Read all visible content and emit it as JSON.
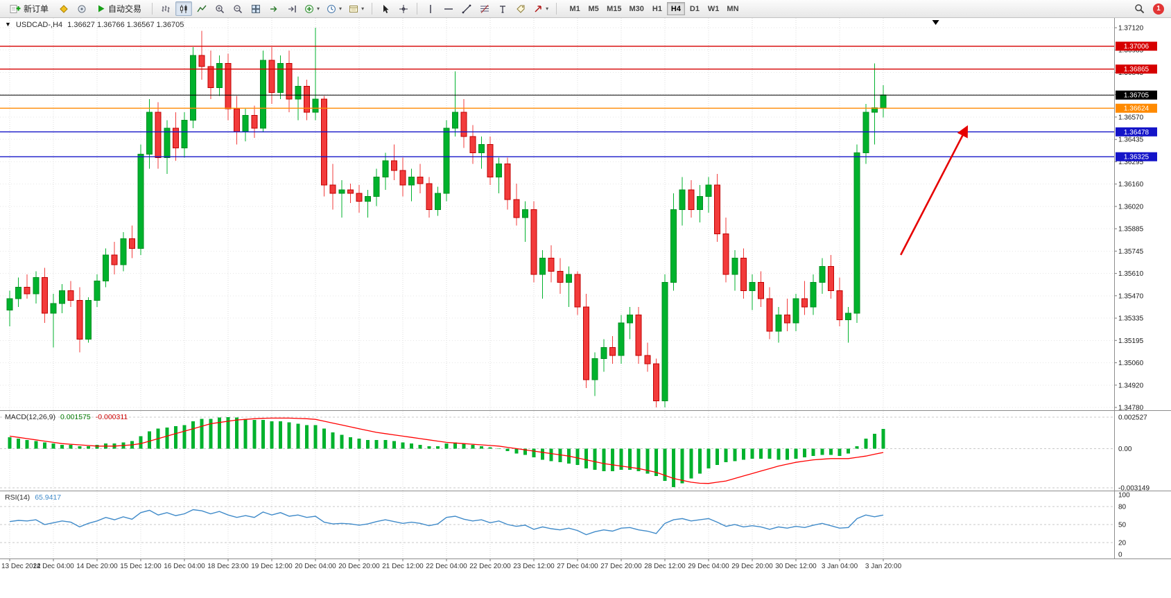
{
  "icons": {
    "chart_menu": "▼",
    "caret": "▾"
  },
  "toolbar": {
    "new_order_label": "新订单",
    "autotrading_label": "自动交易",
    "timeframes": [
      "M1",
      "M5",
      "M15",
      "M30",
      "H1",
      "H4",
      "D1",
      "W1",
      "MN"
    ],
    "active_timeframe": "H4",
    "notification_count": "1"
  },
  "chart": {
    "title": "USDCAD-,H4",
    "ohlc": "1.36627 1.36766 1.36567 1.36705"
  },
  "colors": {
    "up": "#00b22d",
    "up_border": "#008f20",
    "down": "#f23b3b",
    "down_border": "#c00000",
    "grid": "#dcdcdc",
    "hgrid": "#e6e6e6",
    "panel_border": "#8c8c8c",
    "macd_hist": "#00b22d",
    "macd_signal": "#ff0000",
    "rsi_line": "#3f8ac9",
    "level_dash": "#c8c8c8",
    "arrow": "#e60000",
    "current_price": "#000000"
  },
  "chart_data": {
    "type": "candlestick",
    "symbol": "USDCAD",
    "timeframe": "H4",
    "title": "USDCAD-,H4 1.36627 1.36766 1.36567 1.36705",
    "price_axis": {
      "max": 1.3712,
      "min": 1.3478,
      "ticks": [
        "1.37120",
        "1.36985",
        "1.36845",
        "1.36705",
        "1.36570",
        "1.36435",
        "1.36295",
        "1.36160",
        "1.36020",
        "1.35885",
        "1.35745",
        "1.35610",
        "1.35470",
        "1.35335",
        "1.35195",
        "1.35060",
        "1.34920",
        "1.34780"
      ]
    },
    "time_labels": [
      {
        "index": 0,
        "label": "13 Dec 2022"
      },
      {
        "index": 5,
        "label": "14 Dec 04:00"
      },
      {
        "index": 10,
        "label": "14 Dec 20:00"
      },
      {
        "index": 15,
        "label": "15 Dec 12:00"
      },
      {
        "index": 20,
        "label": "16 Dec 04:00"
      },
      {
        "index": 25,
        "label": "18 Dec 23:00"
      },
      {
        "index": 30,
        "label": "19 Dec 12:00"
      },
      {
        "index": 35,
        "label": "20 Dec 04:00"
      },
      {
        "index": 40,
        "label": "20 Dec 20:00"
      },
      {
        "index": 45,
        "label": "21 Dec 12:00"
      },
      {
        "index": 50,
        "label": "22 Dec 04:00"
      },
      {
        "index": 55,
        "label": "22 Dec 20:00"
      },
      {
        "index": 60,
        "label": "23 Dec 12:00"
      },
      {
        "index": 65,
        "label": "27 Dec 04:00"
      },
      {
        "index": 70,
        "label": "27 Dec 20:00"
      },
      {
        "index": 75,
        "label": "28 Dec 12:00"
      },
      {
        "index": 80,
        "label": "29 Dec 04:00"
      },
      {
        "index": 85,
        "label": "29 Dec 20:00"
      },
      {
        "index": 90,
        "label": "30 Dec 12:00"
      },
      {
        "index": 95,
        "label": "3 Jan 04:00"
      },
      {
        "index": 100,
        "label": "3 Jan 20:00"
      }
    ],
    "candles": [
      [
        1.3538,
        1.355,
        1.3528,
        1.3545
      ],
      [
        1.3545,
        1.3558,
        1.354,
        1.3552
      ],
      [
        1.3552,
        1.356,
        1.3545,
        1.3548
      ],
      [
        1.3548,
        1.3562,
        1.3542,
        1.3558
      ],
      [
        1.3558,
        1.3564,
        1.353,
        1.3536
      ],
      [
        1.3536,
        1.3548,
        1.3515,
        1.3542
      ],
      [
        1.3542,
        1.3554,
        1.3536,
        1.355
      ],
      [
        1.355,
        1.3556,
        1.354,
        1.3544
      ],
      [
        1.3544,
        1.3552,
        1.3512,
        1.352
      ],
      [
        1.352,
        1.3546,
        1.3518,
        1.3544
      ],
      [
        1.3544,
        1.356,
        1.354,
        1.3556
      ],
      [
        1.3556,
        1.3576,
        1.3552,
        1.3572
      ],
      [
        1.3572,
        1.358,
        1.356,
        1.3566
      ],
      [
        1.3566,
        1.3586,
        1.3562,
        1.3582
      ],
      [
        1.3582,
        1.359,
        1.357,
        1.3576
      ],
      [
        1.3576,
        1.364,
        1.3572,
        1.3634
      ],
      [
        1.3634,
        1.3668,
        1.3625,
        1.366
      ],
      [
        1.366,
        1.3666,
        1.3625,
        1.3632
      ],
      [
        1.3632,
        1.3655,
        1.3622,
        1.365
      ],
      [
        1.365,
        1.366,
        1.363,
        1.3638
      ],
      [
        1.3638,
        1.366,
        1.3632,
        1.3655
      ],
      [
        1.3655,
        1.37,
        1.365,
        1.3695
      ],
      [
        1.3695,
        1.371,
        1.368,
        1.3688
      ],
      [
        1.3688,
        1.3698,
        1.3668,
        1.3675
      ],
      [
        1.3675,
        1.3695,
        1.367,
        1.369
      ],
      [
        1.369,
        1.3696,
        1.3655,
        1.3662
      ],
      [
        1.3662,
        1.367,
        1.364,
        1.3648
      ],
      [
        1.3648,
        1.3662,
        1.3642,
        1.3658
      ],
      [
        1.3658,
        1.3664,
        1.3644,
        1.365
      ],
      [
        1.365,
        1.3698,
        1.3648,
        1.3692
      ],
      [
        1.3692,
        1.37,
        1.3665,
        1.3672
      ],
      [
        1.3672,
        1.3695,
        1.3668,
        1.369
      ],
      [
        1.369,
        1.3698,
        1.366,
        1.3668
      ],
      [
        1.3668,
        1.3682,
        1.3655,
        1.3676
      ],
      [
        1.3676,
        1.368,
        1.3655,
        1.366
      ],
      [
        1.366,
        1.3712,
        1.3655,
        1.3668
      ],
      [
        1.3668,
        1.367,
        1.3608,
        1.3615
      ],
      [
        1.3615,
        1.3628,
        1.36,
        1.361
      ],
      [
        1.361,
        1.3618,
        1.3595,
        1.3612
      ],
      [
        1.3612,
        1.3616,
        1.3604,
        1.361
      ],
      [
        1.361,
        1.3615,
        1.3598,
        1.3605
      ],
      [
        1.3605,
        1.3612,
        1.3595,
        1.3608
      ],
      [
        1.3608,
        1.3625,
        1.3602,
        1.362
      ],
      [
        1.362,
        1.3635,
        1.3612,
        1.363
      ],
      [
        1.363,
        1.364,
        1.3618,
        1.3624
      ],
      [
        1.3624,
        1.3632,
        1.3608,
        1.3615
      ],
      [
        1.3615,
        1.3625,
        1.3605,
        1.362
      ],
      [
        1.362,
        1.3628,
        1.361,
        1.3616
      ],
      [
        1.3616,
        1.362,
        1.3595,
        1.36
      ],
      [
        1.36,
        1.3614,
        1.3596,
        1.361
      ],
      [
        1.361,
        1.3655,
        1.3605,
        1.365
      ],
      [
        1.365,
        1.3685,
        1.3645,
        1.366
      ],
      [
        1.366,
        1.3668,
        1.3638,
        1.3645
      ],
      [
        1.3645,
        1.3652,
        1.3628,
        1.3635
      ],
      [
        1.3635,
        1.3645,
        1.3625,
        1.364
      ],
      [
        1.364,
        1.3645,
        1.3615,
        1.362
      ],
      [
        1.362,
        1.3632,
        1.361,
        1.3628
      ],
      [
        1.3628,
        1.3632,
        1.36,
        1.3606
      ],
      [
        1.3606,
        1.3616,
        1.359,
        1.3595
      ],
      [
        1.3595,
        1.3605,
        1.358,
        1.36
      ],
      [
        1.36,
        1.3605,
        1.3555,
        1.356
      ],
      [
        1.356,
        1.3575,
        1.3545,
        1.357
      ],
      [
        1.357,
        1.3578,
        1.3555,
        1.3562
      ],
      [
        1.3562,
        1.357,
        1.3548,
        1.3555
      ],
      [
        1.3555,
        1.3565,
        1.354,
        1.356
      ],
      [
        1.356,
        1.3562,
        1.3535,
        1.354
      ],
      [
        1.354,
        1.3548,
        1.349,
        1.3495
      ],
      [
        1.3495,
        1.3512,
        1.3485,
        1.3508
      ],
      [
        1.3508,
        1.352,
        1.35,
        1.3515
      ],
      [
        1.3515,
        1.3522,
        1.3505,
        1.351
      ],
      [
        1.351,
        1.3535,
        1.3505,
        1.353
      ],
      [
        1.353,
        1.354,
        1.352,
        1.3535
      ],
      [
        1.3535,
        1.354,
        1.3505,
        1.351
      ],
      [
        1.351,
        1.3518,
        1.35,
        1.3505
      ],
      [
        1.3505,
        1.3508,
        1.3478,
        1.3482
      ],
      [
        1.3482,
        1.356,
        1.3478,
        1.3555
      ],
      [
        1.3555,
        1.361,
        1.355,
        1.36
      ],
      [
        1.36,
        1.362,
        1.359,
        1.3612
      ],
      [
        1.3612,
        1.3618,
        1.3595,
        1.36
      ],
      [
        1.36,
        1.3615,
        1.3592,
        1.3608
      ],
      [
        1.3608,
        1.362,
        1.3598,
        1.3615
      ],
      [
        1.3615,
        1.3622,
        1.358,
        1.3585
      ],
      [
        1.3585,
        1.3595,
        1.3555,
        1.356
      ],
      [
        1.356,
        1.3575,
        1.355,
        1.357
      ],
      [
        1.357,
        1.3576,
        1.3545,
        1.355
      ],
      [
        1.355,
        1.356,
        1.3538,
        1.3555
      ],
      [
        1.3555,
        1.3562,
        1.354,
        1.3545
      ],
      [
        1.3545,
        1.3552,
        1.352,
        1.3525
      ],
      [
        1.3525,
        1.354,
        1.3518,
        1.3535
      ],
      [
        1.3535,
        1.3545,
        1.3525,
        1.353
      ],
      [
        1.353,
        1.3548,
        1.3525,
        1.3545
      ],
      [
        1.3545,
        1.3556,
        1.3535,
        1.354
      ],
      [
        1.354,
        1.356,
        1.3535,
        1.3555
      ],
      [
        1.3555,
        1.357,
        1.3548,
        1.3565
      ],
      [
        1.3565,
        1.3572,
        1.3545,
        1.355
      ],
      [
        1.355,
        1.3558,
        1.3528,
        1.3532
      ],
      [
        1.3532,
        1.354,
        1.3518,
        1.3536
      ],
      [
        1.3536,
        1.364,
        1.353,
        1.3635
      ],
      [
        1.3635,
        1.3665,
        1.3628,
        1.366
      ],
      [
        1.366,
        1.369,
        1.364,
        1.36627
      ],
      [
        1.36627,
        1.36766,
        1.36567,
        1.36705
      ]
    ],
    "hlines": [
      {
        "price": 1.37006,
        "label": "1.37006",
        "color": "#d60000"
      },
      {
        "price": 1.36865,
        "label": "1.36865",
        "color": "#d60000"
      },
      {
        "price": 1.36624,
        "label": "1.36624",
        "color": "#ff8a00"
      },
      {
        "price": 1.36478,
        "label": "1.36478",
        "color": "#1414c8"
      },
      {
        "price": 1.36325,
        "label": "1.36325",
        "color": "#1414c8"
      }
    ],
    "current_price": {
      "value": 1.36705,
      "label": "1.36705"
    },
    "arrow": {
      "x1_index": 102,
      "price1": 1.3572,
      "x2_index": 109.5,
      "price2": 1.365
    },
    "scroll_marker_index": 106,
    "macd": {
      "label": "MACD(12,26,9)",
      "value_main": "0.001575",
      "value_signal": "-0.000311",
      "scale": {
        "max": 0.002527,
        "min": -0.003149,
        "labels": [
          "0.002527",
          "0.00",
          "-0.003149"
        ]
      },
      "histogram": [
        0.0009,
        0.0008,
        0.0007,
        0.0006,
        0.0005,
        0.0004,
        0.0003,
        0.0003,
        0.0002,
        0.0002,
        0.0003,
        0.0004,
        0.0004,
        0.0005,
        0.0006,
        0.001,
        0.0014,
        0.0016,
        0.0017,
        0.0018,
        0.0019,
        0.0022,
        0.0024,
        0.0024,
        0.0025,
        0.00253,
        0.0025,
        0.0024,
        0.0023,
        0.0023,
        0.0022,
        0.0022,
        0.0021,
        0.002,
        0.0019,
        0.0019,
        0.0016,
        0.0013,
        0.0011,
        0.0009,
        0.0008,
        0.0007,
        0.0007,
        0.0007,
        0.0006,
        0.0005,
        0.0004,
        0.0003,
        0.0002,
        0.0002,
        0.0004,
        0.0005,
        0.0004,
        0.0003,
        0.0002,
        0.0001,
        0.0,
        -0.0002,
        -0.0004,
        -0.0005,
        -0.0007,
        -0.0009,
        -0.001,
        -0.0011,
        -0.0012,
        -0.0013,
        -0.0016,
        -0.0017,
        -0.0018,
        -0.0018,
        -0.0017,
        -0.0017,
        -0.0018,
        -0.002,
        -0.0022,
        -0.0026,
        -0.0031,
        -0.0028,
        -0.0024,
        -0.002,
        -0.0016,
        -0.0013,
        -0.0011,
        -0.001,
        -0.0009,
        -0.0008,
        -0.0008,
        -0.0008,
        -0.0009,
        -0.0009,
        -0.0008,
        -0.0007,
        -0.0006,
        -0.0005,
        -0.0005,
        -0.0006,
        -0.0004,
        0.0002,
        0.0008,
        0.0012,
        0.001575
      ],
      "signal": [
        0.001,
        0.0009,
        0.0008,
        0.0007,
        0.0006,
        0.0005,
        0.0004,
        0.00035,
        0.0003,
        0.00025,
        0.0002,
        0.0002,
        0.0002,
        0.00025,
        0.0003,
        0.0004,
        0.0006,
        0.0008,
        0.001,
        0.0012,
        0.0014,
        0.0016,
        0.0018,
        0.002,
        0.0021,
        0.0022,
        0.0023,
        0.00235,
        0.0024,
        0.00243,
        0.00245,
        0.00245,
        0.00245,
        0.00242,
        0.0024,
        0.00235,
        0.0022,
        0.00205,
        0.0019,
        0.00175,
        0.0016,
        0.00145,
        0.0013,
        0.0012,
        0.0011,
        0.001,
        0.0009,
        0.0008,
        0.0007,
        0.0006,
        0.0005,
        0.00045,
        0.0004,
        0.00035,
        0.0003,
        0.00025,
        0.0002,
        0.0001,
        0.0,
        -0.0001,
        -0.0002,
        -0.0003,
        -0.0004,
        -0.0005,
        -0.0006,
        -0.00075,
        -0.0009,
        -0.00105,
        -0.0012,
        -0.0013,
        -0.0014,
        -0.0015,
        -0.0016,
        -0.00175,
        -0.0019,
        -0.00215,
        -0.0024,
        -0.00255,
        -0.0027,
        -0.00278,
        -0.0028,
        -0.0027,
        -0.0026,
        -0.0024,
        -0.0022,
        -0.002,
        -0.0018,
        -0.0016,
        -0.0014,
        -0.00125,
        -0.0011,
        -0.001,
        -0.0009,
        -0.00085,
        -0.0008,
        -0.0008,
        -0.0008,
        -0.0007,
        -0.0006,
        -0.00045,
        -0.000311
      ]
    },
    "rsi": {
      "label": "RSI(14)",
      "value": "65.9417",
      "levels": [
        80,
        50,
        20
      ],
      "scale_labels": [
        "100",
        "80",
        "50",
        "20",
        "0"
      ],
      "values": [
        55,
        57,
        56,
        58,
        50,
        53,
        56,
        54,
        46,
        52,
        56,
        62,
        58,
        63,
        59,
        70,
        74,
        66,
        70,
        65,
        68,
        75,
        73,
        68,
        72,
        66,
        62,
        65,
        62,
        71,
        66,
        70,
        64,
        66,
        62,
        64,
        54,
        51,
        52,
        51,
        49,
        51,
        55,
        58,
        55,
        52,
        54,
        52,
        48,
        51,
        62,
        64,
        59,
        56,
        58,
        53,
        56,
        50,
        47,
        49,
        42,
        46,
        43,
        41,
        44,
        40,
        33,
        38,
        41,
        39,
        44,
        45,
        41,
        39,
        35,
        52,
        58,
        60,
        56,
        58,
        60,
        54,
        47,
        50,
        46,
        48,
        46,
        42,
        46,
        44,
        47,
        45,
        49,
        52,
        48,
        44,
        45,
        60,
        66,
        63,
        65.94
      ]
    }
  }
}
